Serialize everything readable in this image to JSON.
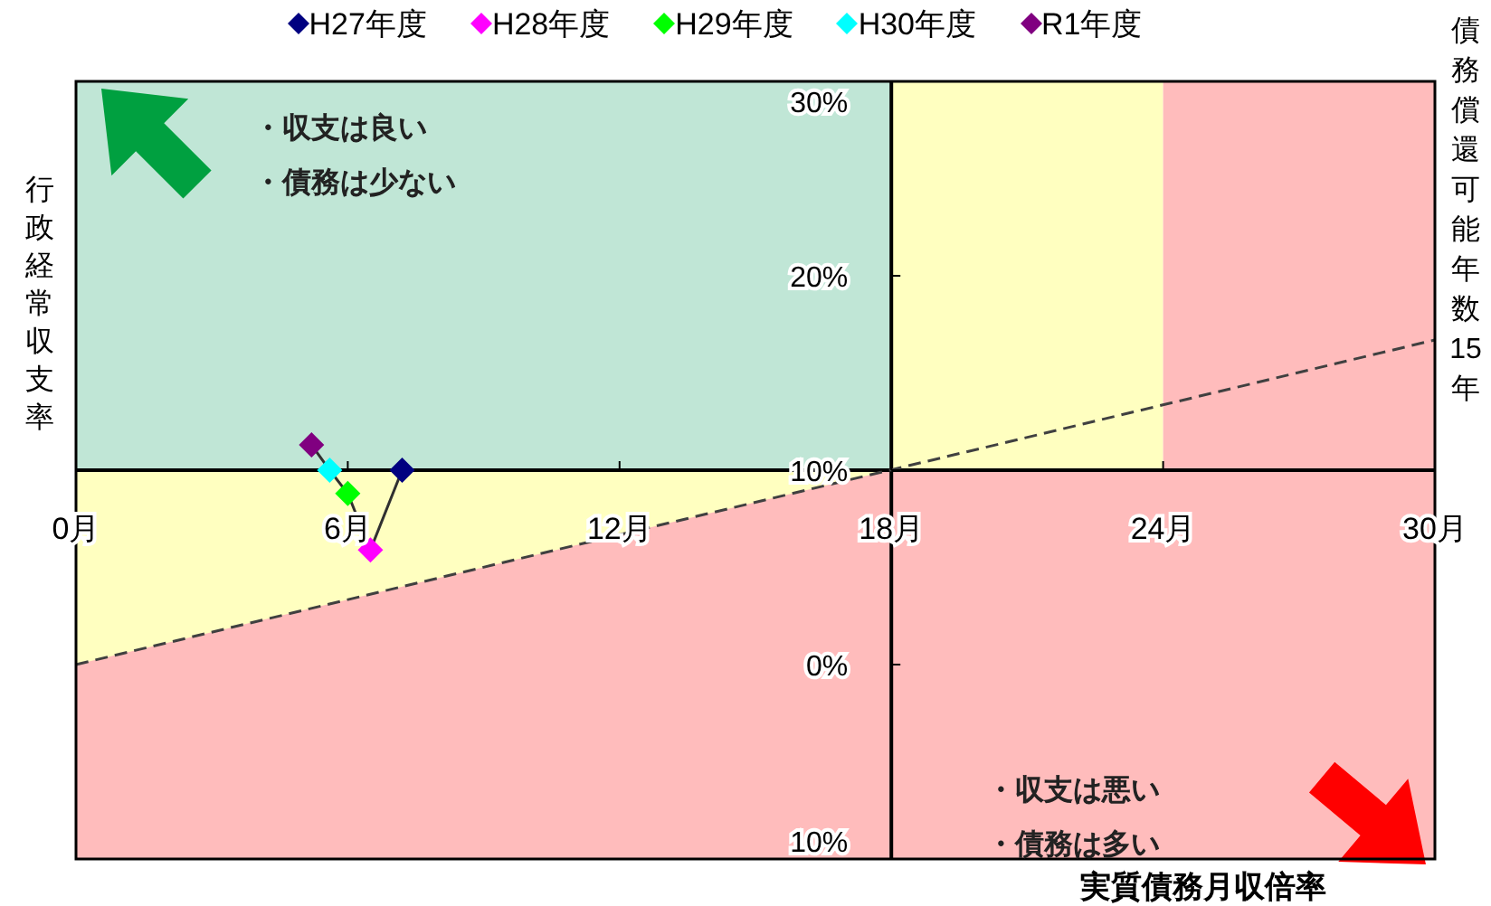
{
  "chart_data": {
    "type": "scatter",
    "xlabel": "実質債務月収倍率",
    "ylabel": "行政経常収支率",
    "xlim": [
      0,
      30
    ],
    "ylim": [
      -10,
      30
    ],
    "xticks": [
      {
        "value": 0,
        "label": "0月"
      },
      {
        "value": 6,
        "label": "6月"
      },
      {
        "value": 12,
        "label": "12月"
      },
      {
        "value": 18,
        "label": "18月"
      },
      {
        "value": 24,
        "label": "24月"
      },
      {
        "value": 30,
        "label": "30月"
      }
    ],
    "yticks": [
      {
        "value": 30,
        "label": "30%"
      },
      {
        "value": 20,
        "label": "20%"
      },
      {
        "value": 10,
        "label": "10%"
      },
      {
        "value": 0,
        "label": "0%"
      },
      {
        "value": -10,
        "label": "10%"
      }
    ],
    "series": [
      {
        "name": "H27年度",
        "color": "#000080",
        "x": [
          7.2
        ],
        "values": [
          10.0
        ]
      },
      {
        "name": "H28年度",
        "color": "#ff00ff",
        "x": [
          6.5
        ],
        "values": [
          5.9
        ]
      },
      {
        "name": "H29年度",
        "color": "#00ff00",
        "x": [
          6.0
        ],
        "values": [
          8.8
        ]
      },
      {
        "name": "H30年度",
        "color": "#00ffff",
        "x": [
          5.6
        ],
        "values": [
          10.0
        ]
      },
      {
        "name": "R1年度",
        "color": "#800080",
        "x": [
          5.2
        ],
        "values": [
          11.3
        ]
      },
      {
        "type": "line",
        "name": "債務償還可能年数15年",
        "color": "#404040",
        "line_style": "dashed",
        "marker": "none",
        "x": [
          0,
          30
        ],
        "values": [
          0,
          16.7
        ]
      },
      {
        "type": "line",
        "color": "#303030",
        "line_style": "solid",
        "marker": "none",
        "x": [
          7.2,
          6.5,
          6.0,
          5.6,
          5.2
        ],
        "values": [
          10.0,
          5.9,
          8.8,
          10.0,
          11.3
        ]
      }
    ],
    "bands": [
      {
        "axis": "y",
        "from": -10,
        "to": 10,
        "color": "#ffbcbc"
      },
      {
        "axis": "x",
        "from": 0,
        "to": 18,
        "color": "#c0e6d6"
      },
      {
        "axis": "x",
        "from": 18,
        "to": 24,
        "color": "#ffffc0"
      },
      {
        "axis": "x",
        "from": 24,
        "to": 30,
        "color": "#ffbcbc"
      }
    ],
    "annotations": [
      "・収支は良い",
      "・債務は少ない",
      "・収支は悪い",
      "・債務は多い"
    ],
    "marker": "diamond",
    "grid": false,
    "legend": "top"
  }
}
